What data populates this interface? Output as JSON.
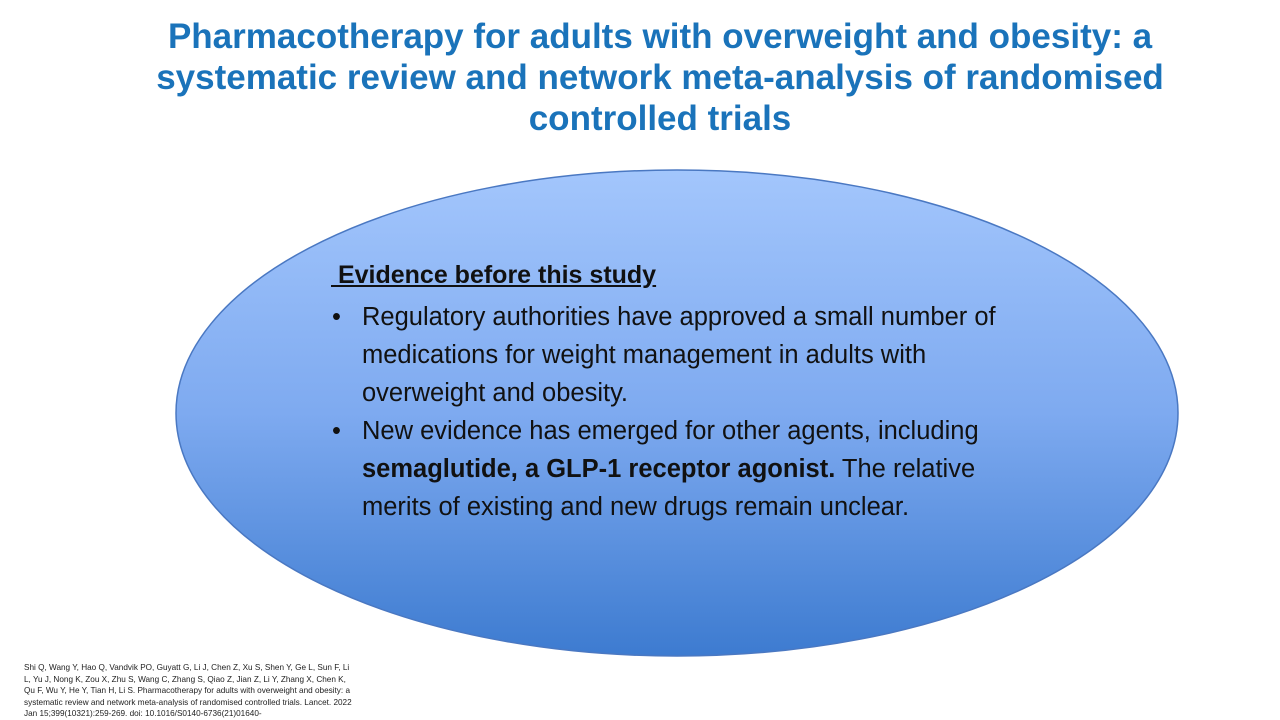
{
  "title": {
    "lines": [
      "Pharmacotherapy for adults with overweight and obesity: a",
      "systematic review and network meta-analysis of randomised",
      "controlled trials"
    ]
  },
  "ellipse": {
    "heading": " Evidence before this study",
    "bullets": [
      {
        "parts": [
          "Regulatory authorities have approved a small number of medications for weight management in adults with overweight and obesity."
        ]
      },
      {
        "parts": [
          " New evidence has emerged for other agents, including ",
          "semaglutide, a GLP-1 receptor agonist.",
          " The relative merits of existing and new drugs remain unclear."
        ]
      }
    ]
  },
  "citation": "Shi Q, Wang Y, Hao Q, Vandvik PO, Guyatt G, Li J, Chen Z, Xu S, Shen Y, Ge L, Sun F, Li L, Yu J, Nong K, Zou X, Zhu S, Wang C, Zhang S, Qiao Z, Jian Z, Li Y, Zhang X, Chen K, Qu F, Wu Y, He Y, Tian H, Li S. Pharmacotherapy for adults with overweight and obesity: a systematic review and network meta-analysis of randomised controlled trials. Lancet. 2022 Jan 15;399(10321):259-269. doi: 10.1016/S0140-6736(21)01640-"
}
